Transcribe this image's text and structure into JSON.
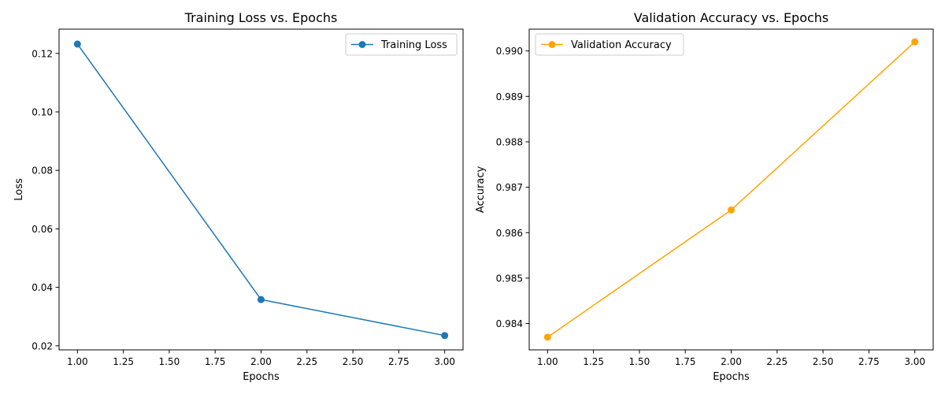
{
  "chart_data": [
    {
      "type": "line",
      "title": "Training Loss vs. Epochs",
      "xlabel": "Epochs",
      "ylabel": "Loss",
      "xlim": [
        0.9,
        3.1
      ],
      "ylim": [
        0.0186,
        0.1283
      ],
      "xticks": [
        1.0,
        1.25,
        1.5,
        1.75,
        2.0,
        2.25,
        2.5,
        2.75,
        3.0
      ],
      "xtick_labels": [
        "1.00",
        "1.25",
        "1.50",
        "1.75",
        "2.00",
        "2.25",
        "2.50",
        "2.75",
        "3.00"
      ],
      "yticks": [
        0.02,
        0.04,
        0.06,
        0.08,
        0.1,
        0.12
      ],
      "ytick_labels": [
        "0.02",
        "0.04",
        "0.06",
        "0.08",
        "0.10",
        "0.12"
      ],
      "grid": false,
      "legend_position": "upper right",
      "series": [
        {
          "name": "Training Loss",
          "color": "#1f77b4",
          "marker": "circle",
          "x": [
            1,
            2,
            3
          ],
          "y": [
            0.1232,
            0.0358,
            0.0235
          ]
        }
      ]
    },
    {
      "type": "line",
      "title": "Validation Accuracy vs. Epochs",
      "xlabel": "Epochs",
      "ylabel": "Accuracy",
      "xlim": [
        0.9,
        3.1
      ],
      "ylim": [
        0.98342,
        0.99048
      ],
      "xticks": [
        1.0,
        1.25,
        1.5,
        1.75,
        2.0,
        2.25,
        2.5,
        2.75,
        3.0
      ],
      "xtick_labels": [
        "1.00",
        "1.25",
        "1.50",
        "1.75",
        "2.00",
        "2.25",
        "2.50",
        "2.75",
        "3.00"
      ],
      "yticks": [
        0.984,
        0.985,
        0.986,
        0.987,
        0.988,
        0.989,
        0.99
      ],
      "ytick_labels": [
        "0.984",
        "0.985",
        "0.986",
        "0.987",
        "0.988",
        "0.989",
        "0.990"
      ],
      "grid": false,
      "legend_position": "upper left",
      "series": [
        {
          "name": "Validation Accuracy",
          "color": "#ffa500",
          "marker": "circle",
          "x": [
            1,
            2,
            3
          ],
          "y": [
            0.9837,
            0.9865,
            0.9902
          ]
        }
      ]
    }
  ]
}
